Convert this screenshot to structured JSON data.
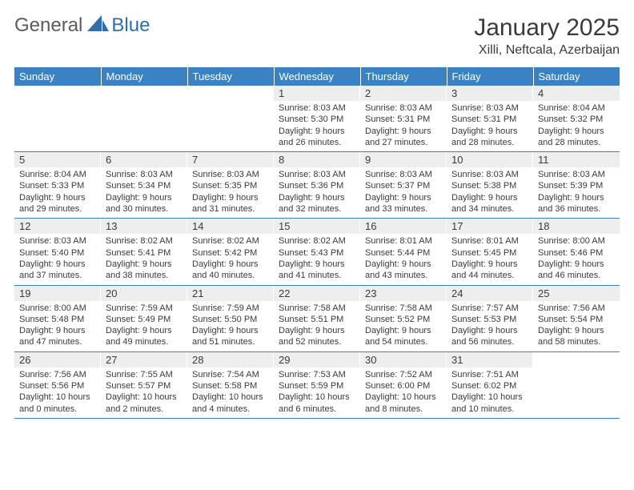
{
  "logo": {
    "text1": "General",
    "text2": "Blue"
  },
  "title": "January 2025",
  "location": "Xilli, Neftcala, Azerbaijan",
  "colors": {
    "header_bg": "#3a82c4",
    "header_fg": "#ffffff",
    "daynum_bg": "#eeeeee",
    "rule": "#3a82c4",
    "logo_gray": "#5b5b5b",
    "logo_blue": "#2f6ea8"
  },
  "weekdays": [
    "Sunday",
    "Monday",
    "Tuesday",
    "Wednesday",
    "Thursday",
    "Friday",
    "Saturday"
  ],
  "weeks": [
    [
      null,
      null,
      null,
      {
        "d": "1",
        "sr": "8:03 AM",
        "ss": "5:30 PM",
        "dl": "9 hours and 26 minutes."
      },
      {
        "d": "2",
        "sr": "8:03 AM",
        "ss": "5:31 PM",
        "dl": "9 hours and 27 minutes."
      },
      {
        "d": "3",
        "sr": "8:03 AM",
        "ss": "5:31 PM",
        "dl": "9 hours and 28 minutes."
      },
      {
        "d": "4",
        "sr": "8:04 AM",
        "ss": "5:32 PM",
        "dl": "9 hours and 28 minutes."
      }
    ],
    [
      {
        "d": "5",
        "sr": "8:04 AM",
        "ss": "5:33 PM",
        "dl": "9 hours and 29 minutes."
      },
      {
        "d": "6",
        "sr": "8:03 AM",
        "ss": "5:34 PM",
        "dl": "9 hours and 30 minutes."
      },
      {
        "d": "7",
        "sr": "8:03 AM",
        "ss": "5:35 PM",
        "dl": "9 hours and 31 minutes."
      },
      {
        "d": "8",
        "sr": "8:03 AM",
        "ss": "5:36 PM",
        "dl": "9 hours and 32 minutes."
      },
      {
        "d": "9",
        "sr": "8:03 AM",
        "ss": "5:37 PM",
        "dl": "9 hours and 33 minutes."
      },
      {
        "d": "10",
        "sr": "8:03 AM",
        "ss": "5:38 PM",
        "dl": "9 hours and 34 minutes."
      },
      {
        "d": "11",
        "sr": "8:03 AM",
        "ss": "5:39 PM",
        "dl": "9 hours and 36 minutes."
      }
    ],
    [
      {
        "d": "12",
        "sr": "8:03 AM",
        "ss": "5:40 PM",
        "dl": "9 hours and 37 minutes."
      },
      {
        "d": "13",
        "sr": "8:02 AM",
        "ss": "5:41 PM",
        "dl": "9 hours and 38 minutes."
      },
      {
        "d": "14",
        "sr": "8:02 AM",
        "ss": "5:42 PM",
        "dl": "9 hours and 40 minutes."
      },
      {
        "d": "15",
        "sr": "8:02 AM",
        "ss": "5:43 PM",
        "dl": "9 hours and 41 minutes."
      },
      {
        "d": "16",
        "sr": "8:01 AM",
        "ss": "5:44 PM",
        "dl": "9 hours and 43 minutes."
      },
      {
        "d": "17",
        "sr": "8:01 AM",
        "ss": "5:45 PM",
        "dl": "9 hours and 44 minutes."
      },
      {
        "d": "18",
        "sr": "8:00 AM",
        "ss": "5:46 PM",
        "dl": "9 hours and 46 minutes."
      }
    ],
    [
      {
        "d": "19",
        "sr": "8:00 AM",
        "ss": "5:48 PM",
        "dl": "9 hours and 47 minutes."
      },
      {
        "d": "20",
        "sr": "7:59 AM",
        "ss": "5:49 PM",
        "dl": "9 hours and 49 minutes."
      },
      {
        "d": "21",
        "sr": "7:59 AM",
        "ss": "5:50 PM",
        "dl": "9 hours and 51 minutes."
      },
      {
        "d": "22",
        "sr": "7:58 AM",
        "ss": "5:51 PM",
        "dl": "9 hours and 52 minutes."
      },
      {
        "d": "23",
        "sr": "7:58 AM",
        "ss": "5:52 PM",
        "dl": "9 hours and 54 minutes."
      },
      {
        "d": "24",
        "sr": "7:57 AM",
        "ss": "5:53 PM",
        "dl": "9 hours and 56 minutes."
      },
      {
        "d": "25",
        "sr": "7:56 AM",
        "ss": "5:54 PM",
        "dl": "9 hours and 58 minutes."
      }
    ],
    [
      {
        "d": "26",
        "sr": "7:56 AM",
        "ss": "5:56 PM",
        "dl": "10 hours and 0 minutes."
      },
      {
        "d": "27",
        "sr": "7:55 AM",
        "ss": "5:57 PM",
        "dl": "10 hours and 2 minutes."
      },
      {
        "d": "28",
        "sr": "7:54 AM",
        "ss": "5:58 PM",
        "dl": "10 hours and 4 minutes."
      },
      {
        "d": "29",
        "sr": "7:53 AM",
        "ss": "5:59 PM",
        "dl": "10 hours and 6 minutes."
      },
      {
        "d": "30",
        "sr": "7:52 AM",
        "ss": "6:00 PM",
        "dl": "10 hours and 8 minutes."
      },
      {
        "d": "31",
        "sr": "7:51 AM",
        "ss": "6:02 PM",
        "dl": "10 hours and 10 minutes."
      },
      null
    ]
  ],
  "labels": {
    "sunrise": "Sunrise:",
    "sunset": "Sunset:",
    "daylight": "Daylight:"
  }
}
